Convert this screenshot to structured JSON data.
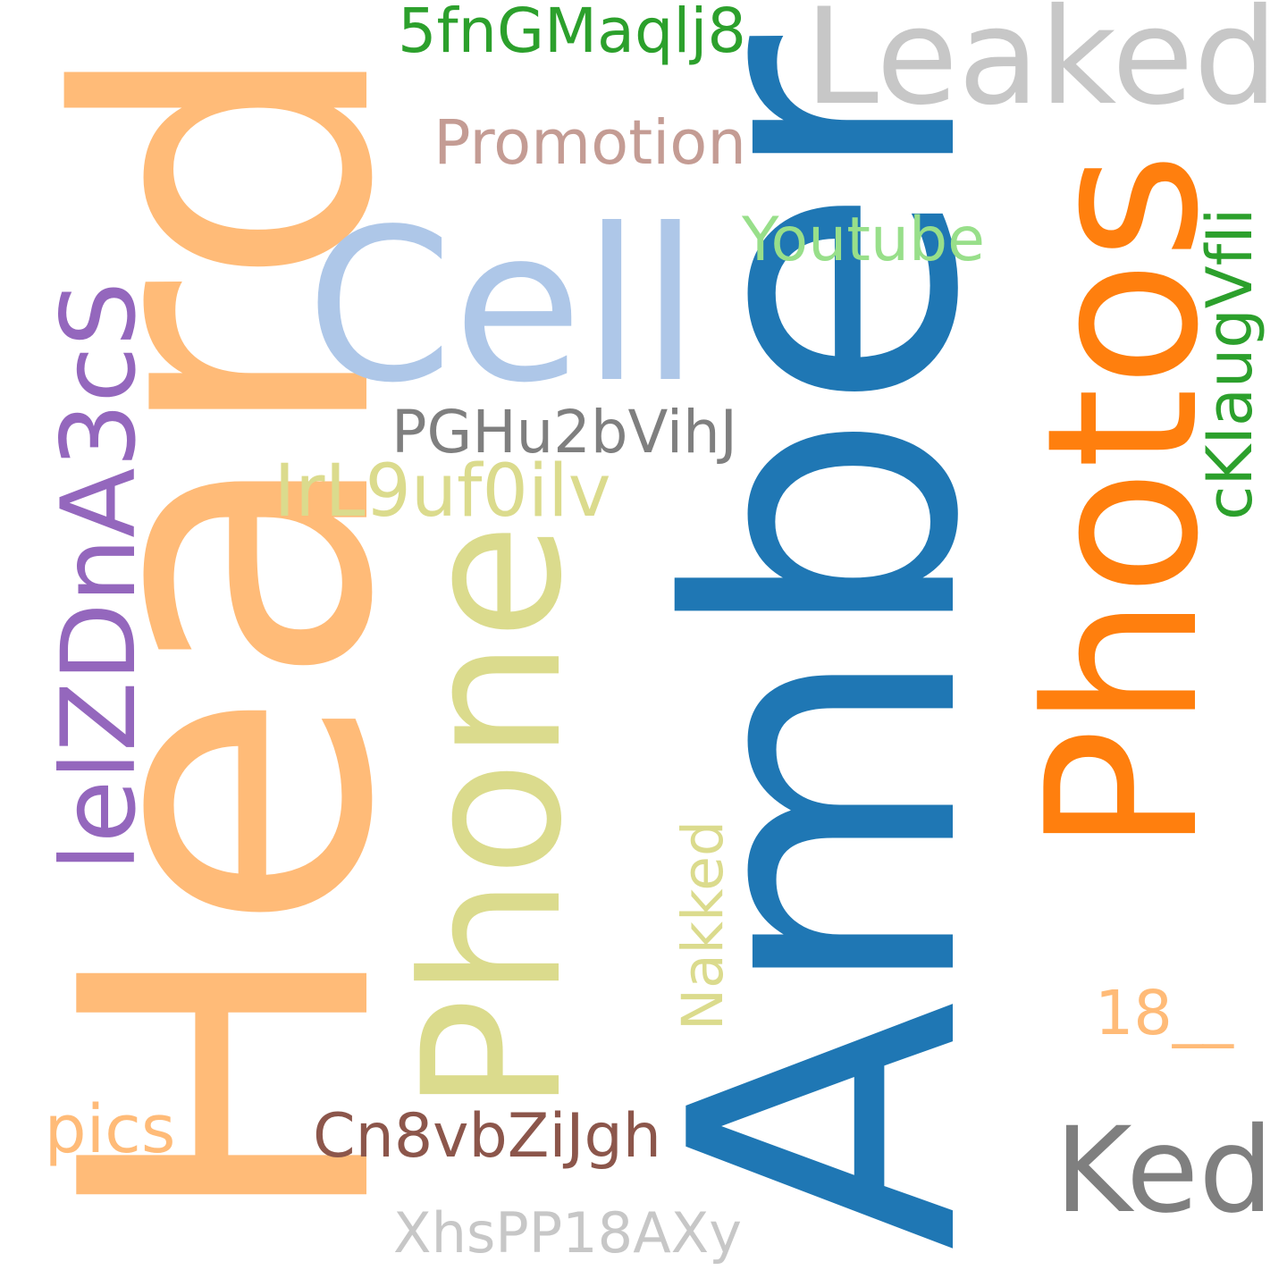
{
  "words": [
    {
      "id": "amber",
      "text": "Amber",
      "color": "#1f77b4",
      "orientation": "vertical"
    },
    {
      "id": "heard",
      "text": "Heard",
      "color": "#ffbb78",
      "orientation": "vertical"
    },
    {
      "id": "photos",
      "text": "Photos",
      "color": "#ff7f0e",
      "orientation": "vertical"
    },
    {
      "id": "phone",
      "text": "Phone",
      "color": "#dbdb8d",
      "orientation": "vertical"
    },
    {
      "id": "cell",
      "text": "Cell",
      "color": "#aec7e8",
      "orientation": "horizontal"
    },
    {
      "id": "leaked",
      "text": "Leaked",
      "color": "#c7c7c7",
      "orientation": "horizontal"
    },
    {
      "id": "ked",
      "text": "Ked",
      "color": "#7f7f7f",
      "orientation": "horizontal"
    },
    {
      "id": "lelzdna3cs",
      "text": "lelZDnA3cS",
      "color": "#9467bd",
      "orientation": "vertical"
    },
    {
      "id": "5fngmaqlj8",
      "text": "5fnGMaqlj8",
      "color": "#2ca02c",
      "orientation": "horizontal"
    },
    {
      "id": "promotion",
      "text": "Promotion",
      "color": "#c49c94",
      "orientation": "horizontal"
    },
    {
      "id": "youtube",
      "text": "Youtube",
      "color": "#98df8a",
      "orientation": "horizontal"
    },
    {
      "id": "pghu2bvihj",
      "text": "PGHu2bVihJ",
      "color": "#7f7f7f",
      "orientation": "horizontal"
    },
    {
      "id": "irl9uf0ilv",
      "text": "IrL9uf0ilv",
      "color": "#dbdb8d",
      "orientation": "horizontal"
    },
    {
      "id": "cklaugvfli",
      "text": "cKIaugVfIi",
      "color": "#2ca02c",
      "orientation": "vertical"
    },
    {
      "id": "nakked",
      "text": "Nakked",
      "color": "#dbdb8d",
      "orientation": "vertical"
    },
    {
      "id": "18",
      "text": "18__",
      "color": "#ffbb78",
      "orientation": "horizontal"
    },
    {
      "id": "pics",
      "text": "pics",
      "color": "#ffbb78",
      "orientation": "horizontal"
    },
    {
      "id": "cn8vbzijgh",
      "text": "Cn8vbZiJgh",
      "color": "#8c564b",
      "orientation": "horizontal"
    },
    {
      "id": "xhspp18axy",
      "text": "XhsPP18AXy",
      "color": "#c7c7c7",
      "orientation": "horizontal"
    }
  ]
}
